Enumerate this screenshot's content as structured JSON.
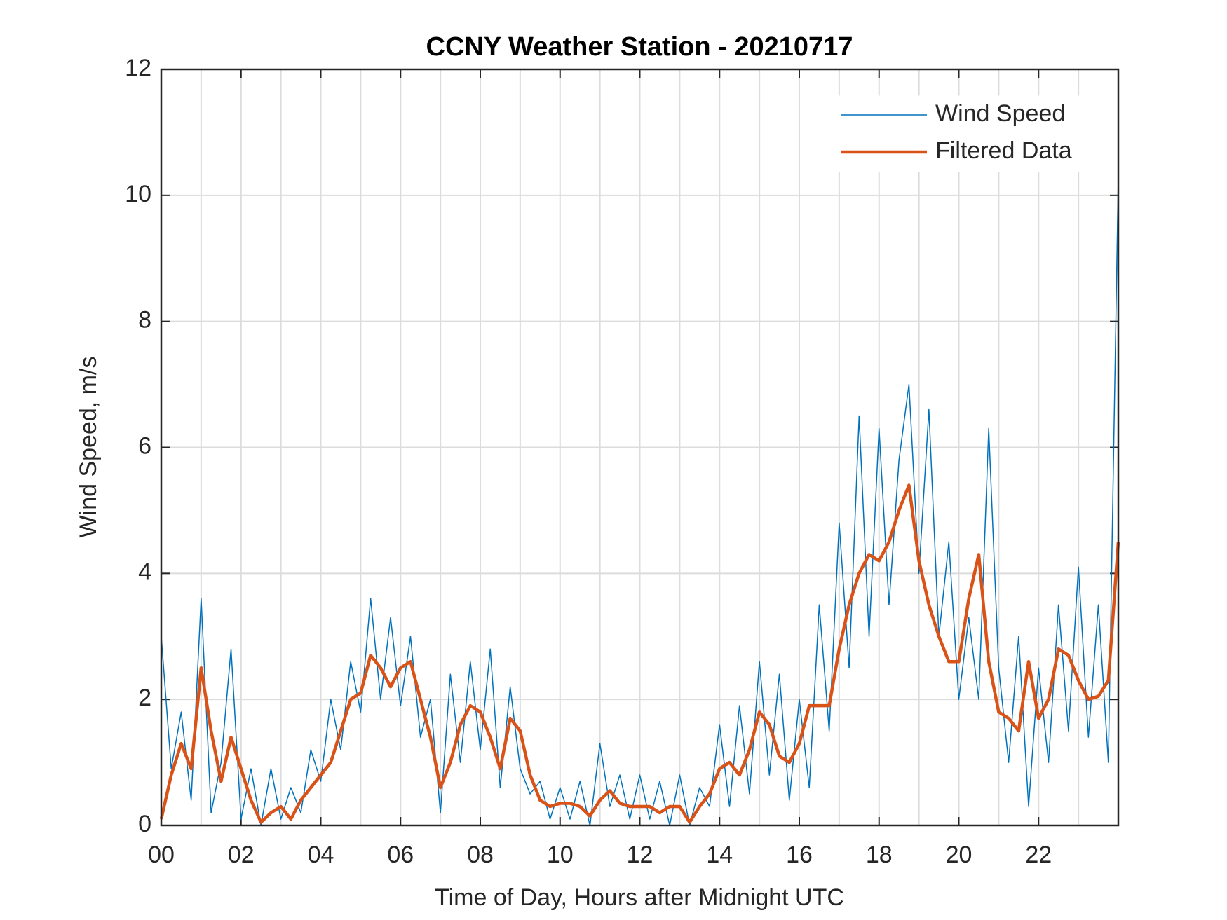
{
  "chart_data": {
    "type": "line",
    "title": "CCNY Weather Station - 20210717",
    "xlabel": "Time of Day, Hours after Midnight UTC",
    "ylabel": "Wind Speed, m/s",
    "x": [
      0,
      0.25,
      0.5,
      0.75,
      1,
      1.25,
      1.5,
      1.75,
      2,
      2.25,
      2.5,
      2.75,
      3,
      3.25,
      3.5,
      3.75,
      4,
      4.25,
      4.5,
      4.75,
      5,
      5.25,
      5.5,
      5.75,
      6,
      6.25,
      6.5,
      6.75,
      7,
      7.25,
      7.5,
      7.75,
      8,
      8.25,
      8.5,
      8.75,
      9,
      9.25,
      9.5,
      9.75,
      10,
      10.25,
      10.5,
      10.75,
      11,
      11.25,
      11.5,
      11.75,
      12,
      12.25,
      12.5,
      12.75,
      13,
      13.25,
      13.5,
      13.75,
      14,
      14.25,
      14.5,
      14.75,
      15,
      15.25,
      15.5,
      15.75,
      16,
      16.25,
      16.5,
      16.75,
      17,
      17.25,
      17.5,
      17.75,
      18,
      18.25,
      18.5,
      18.75,
      19,
      19.25,
      19.5,
      19.75,
      20,
      20.25,
      20.5,
      20.75,
      21,
      21.25,
      21.5,
      21.75,
      22,
      22.25,
      22.5,
      22.75,
      23,
      23.25,
      23.5,
      23.75,
      24
    ],
    "series": [
      {
        "name": "Wind Speed",
        "color": "#0072BD",
        "width": 1.5,
        "values": [
          3.0,
          0.9,
          1.8,
          0.4,
          3.6,
          0.2,
          1.0,
          2.8,
          0.1,
          0.9,
          0.0,
          0.9,
          0.1,
          0.6,
          0.2,
          1.2,
          0.7,
          2.0,
          1.2,
          2.6,
          1.8,
          3.6,
          2.0,
          3.3,
          1.9,
          3.0,
          1.4,
          2.0,
          0.2,
          2.4,
          1.0,
          2.6,
          1.2,
          2.8,
          0.6,
          2.2,
          0.9,
          0.5,
          0.7,
          0.1,
          0.6,
          0.1,
          0.7,
          0.0,
          1.3,
          0.3,
          0.8,
          0.1,
          0.8,
          0.1,
          0.7,
          0.0,
          0.8,
          0.0,
          0.6,
          0.3,
          1.6,
          0.3,
          1.9,
          0.5,
          2.6,
          0.8,
          2.4,
          0.4,
          2.0,
          0.6,
          3.5,
          1.5,
          4.8,
          2.5,
          6.5,
          3.0,
          6.3,
          3.5,
          5.8,
          7.0,
          4.0,
          6.6,
          3.0,
          4.5,
          2.0,
          3.3,
          2.0,
          6.3,
          2.5,
          1.0,
          3.0,
          0.3,
          2.5,
          1.0,
          3.5,
          1.5,
          4.1,
          1.4,
          3.5,
          1.0,
          10.3
        ]
      },
      {
        "name": "Filtered Data",
        "color": "#D95319",
        "width": 4.5,
        "values": [
          0.1,
          0.8,
          1.3,
          0.9,
          2.5,
          1.5,
          0.7,
          1.4,
          0.9,
          0.4,
          0.05,
          0.2,
          0.3,
          0.1,
          0.4,
          0.6,
          0.8,
          1.0,
          1.5,
          2.0,
          2.1,
          2.7,
          2.5,
          2.2,
          2.5,
          2.6,
          2.0,
          1.4,
          0.6,
          1.0,
          1.6,
          1.9,
          1.8,
          1.4,
          0.9,
          1.7,
          1.5,
          0.8,
          0.4,
          0.3,
          0.35,
          0.35,
          0.3,
          0.15,
          0.4,
          0.55,
          0.35,
          0.3,
          0.3,
          0.3,
          0.2,
          0.3,
          0.3,
          0.05,
          0.3,
          0.5,
          0.9,
          1.0,
          0.8,
          1.2,
          1.8,
          1.6,
          1.1,
          1.0,
          1.3,
          1.9,
          1.9,
          1.9,
          2.8,
          3.5,
          4.0,
          4.3,
          4.2,
          4.5,
          5.0,
          5.4,
          4.2,
          3.5,
          3.0,
          2.6,
          2.6,
          3.6,
          4.3,
          2.6,
          1.8,
          1.7,
          1.5,
          2.6,
          1.7,
          2.0,
          2.8,
          2.7,
          2.3,
          2.0,
          2.05,
          2.3,
          4.5
        ]
      }
    ],
    "xlim": [
      0,
      24
    ],
    "xticks": [
      {
        "value": 0,
        "label": "00"
      },
      {
        "value": 2,
        "label": "02"
      },
      {
        "value": 4,
        "label": "04"
      },
      {
        "value": 6,
        "label": "06"
      },
      {
        "value": 8,
        "label": "08"
      },
      {
        "value": 10,
        "label": "10"
      },
      {
        "value": 12,
        "label": "12"
      },
      {
        "value": 14,
        "label": "14"
      },
      {
        "value": 16,
        "label": "16"
      },
      {
        "value": 18,
        "label": "18"
      },
      {
        "value": 20,
        "label": "20"
      },
      {
        "value": 22,
        "label": "22"
      }
    ],
    "xminorticks": [
      1,
      3,
      5,
      7,
      9,
      11,
      13,
      15,
      17,
      19,
      21,
      23
    ],
    "ylim": [
      0,
      12
    ],
    "yticks": [
      0,
      2,
      4,
      6,
      8,
      10,
      12
    ],
    "grid": true,
    "legend": "upper-right"
  }
}
